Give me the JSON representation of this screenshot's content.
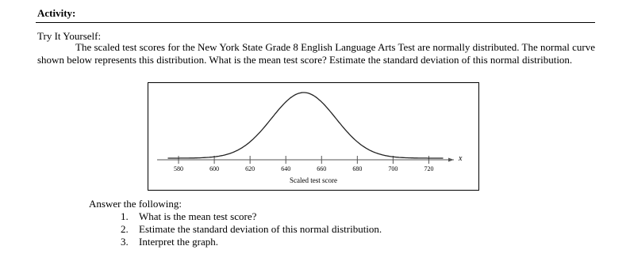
{
  "header": {
    "title": "Activity:"
  },
  "body": {
    "subtitle": "Try It Yourself:",
    "paragraph": "The scaled test scores for the New York State Grade 8 English Language Arts Test are normally distributed. The normal curve shown below represents this distribution. What is the mean test score? Estimate the standard deviation of this normal distribution."
  },
  "figure": {
    "type": "normal-curve",
    "x_label": "Scaled test score",
    "x_var": "x",
    "xlim": [
      568,
      734
    ],
    "xticks": [
      580,
      600,
      620,
      640,
      660,
      680,
      700,
      720
    ],
    "mean": 650,
    "sd": 18,
    "color": "#222222"
  },
  "questions": {
    "intro": "Answer the following:",
    "items": [
      {
        "number": "1.",
        "text": "What is the mean test score?"
      },
      {
        "number": "2.",
        "text": "Estimate the standard deviation of this normal distribution."
      },
      {
        "number": "3.",
        "text": "Interpret the graph."
      }
    ]
  }
}
